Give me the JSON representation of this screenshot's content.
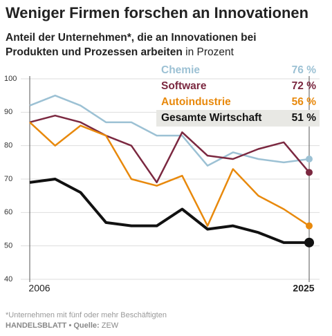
{
  "chart_data": {
    "type": "line",
    "title": "Weniger Firmen forschen an Innovationen",
    "subtitle": [
      "Anteil der Unternehmen*, die an Innovationen bei",
      "Produkten und Prozessen arbeiten"
    ],
    "subtitle_unit": "in Prozent",
    "footnote": "*Unternehmen mit fünf oder mehr Beschäftigten",
    "source": {
      "publisher": "HANDELSBLATT •",
      "label": "Quelle:",
      "name": "ZEW"
    },
    "categories": [
      "2006",
      null,
      null,
      null,
      null,
      null,
      null,
      null,
      null,
      null,
      null,
      "2025"
    ],
    "series": [
      {
        "name": "Chemie",
        "color": "#9cc1d4",
        "values": [
          92,
          95,
          92,
          87,
          87,
          83,
          83,
          74,
          78,
          76,
          75,
          76
        ],
        "value_labels": [
          null,
          null,
          null,
          null,
          null,
          null,
          null,
          null,
          null,
          null,
          null,
          "76 %"
        ]
      },
      {
        "name": "Software",
        "color": "#7b2840",
        "values": [
          87,
          89,
          87,
          83,
          80,
          69,
          84,
          77,
          76,
          79,
          81,
          72
        ],
        "value_labels": [
          null,
          null,
          null,
          null,
          null,
          null,
          null,
          null,
          null,
          null,
          null,
          "72 %"
        ]
      },
      {
        "name": "Autoindustrie",
        "color": "#e8890c",
        "values": [
          87,
          80,
          86,
          83,
          70,
          68,
          71,
          56,
          73,
          65,
          61,
          56
        ],
        "value_labels": [
          null,
          null,
          null,
          null,
          null,
          null,
          null,
          null,
          null,
          null,
          null,
          "56 %"
        ]
      },
      {
        "name": "Gesamte Wirtschaft",
        "color": "#111111",
        "values": [
          69,
          70,
          66,
          57,
          56,
          56,
          61,
          55,
          56,
          54,
          51,
          51
        ],
        "value_labels": [
          null,
          null,
          null,
          null,
          null,
          null,
          null,
          null,
          null,
          null,
          null,
          "51 %"
        ]
      }
    ],
    "ylim": [
      40,
      100
    ],
    "yticks": [
      40,
      50,
      60,
      70,
      80,
      90,
      100
    ],
    "grid": true
  }
}
